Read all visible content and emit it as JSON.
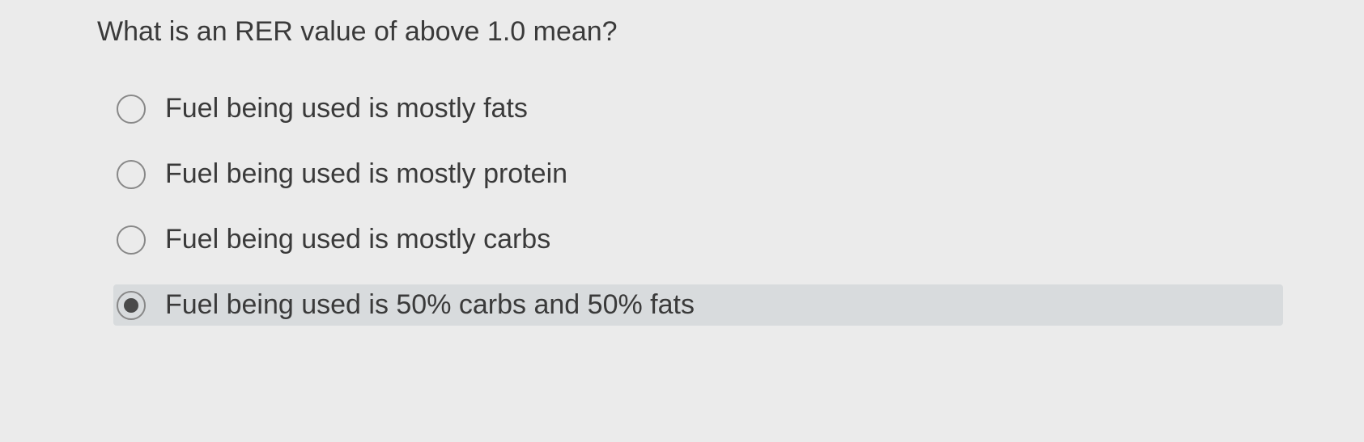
{
  "question": {
    "text": "What is an RER value of above 1.0 mean?",
    "text_color": "#3a3a3a",
    "fontsize": 34
  },
  "options": [
    {
      "label": "Fuel being used is mostly fats",
      "selected": false
    },
    {
      "label": "Fuel being used is mostly protein",
      "selected": false
    },
    {
      "label": "Fuel being used is mostly carbs",
      "selected": false
    },
    {
      "label": "Fuel being used is 50% carbs and 50% fats",
      "selected": true
    }
  ],
  "styling": {
    "background_color": "#ebebeb",
    "selected_row_background": "#d8dbdd",
    "radio_border_color": "#888888",
    "radio_fill_color": "#4a4a4a",
    "option_text_color": "#3a3a3a",
    "option_fontsize": 34
  }
}
